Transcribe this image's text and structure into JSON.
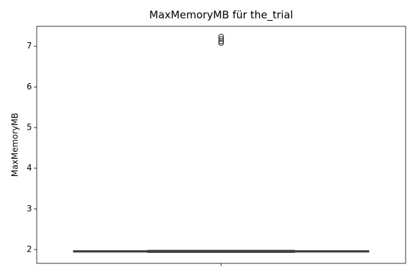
{
  "chart_data": {
    "type": "box",
    "title": "MaxMemoryMB für the_trial",
    "ylabel": "MaxMemoryMB",
    "categories": [
      null
    ],
    "boxes": [
      {
        "whislo": 1.93,
        "q1": 1.94,
        "med": 1.95,
        "q3": 1.97,
        "whishi": 1.98,
        "fliers": [
          7.08,
          7.12,
          7.18,
          7.24
        ]
      }
    ],
    "color": "#3274a1",
    "edgecolor": "#3f3f3f",
    "ylim": [
      1.66,
      7.49
    ],
    "yticks": [
      2,
      3,
      4,
      5,
      6,
      7
    ],
    "grid": false
  }
}
